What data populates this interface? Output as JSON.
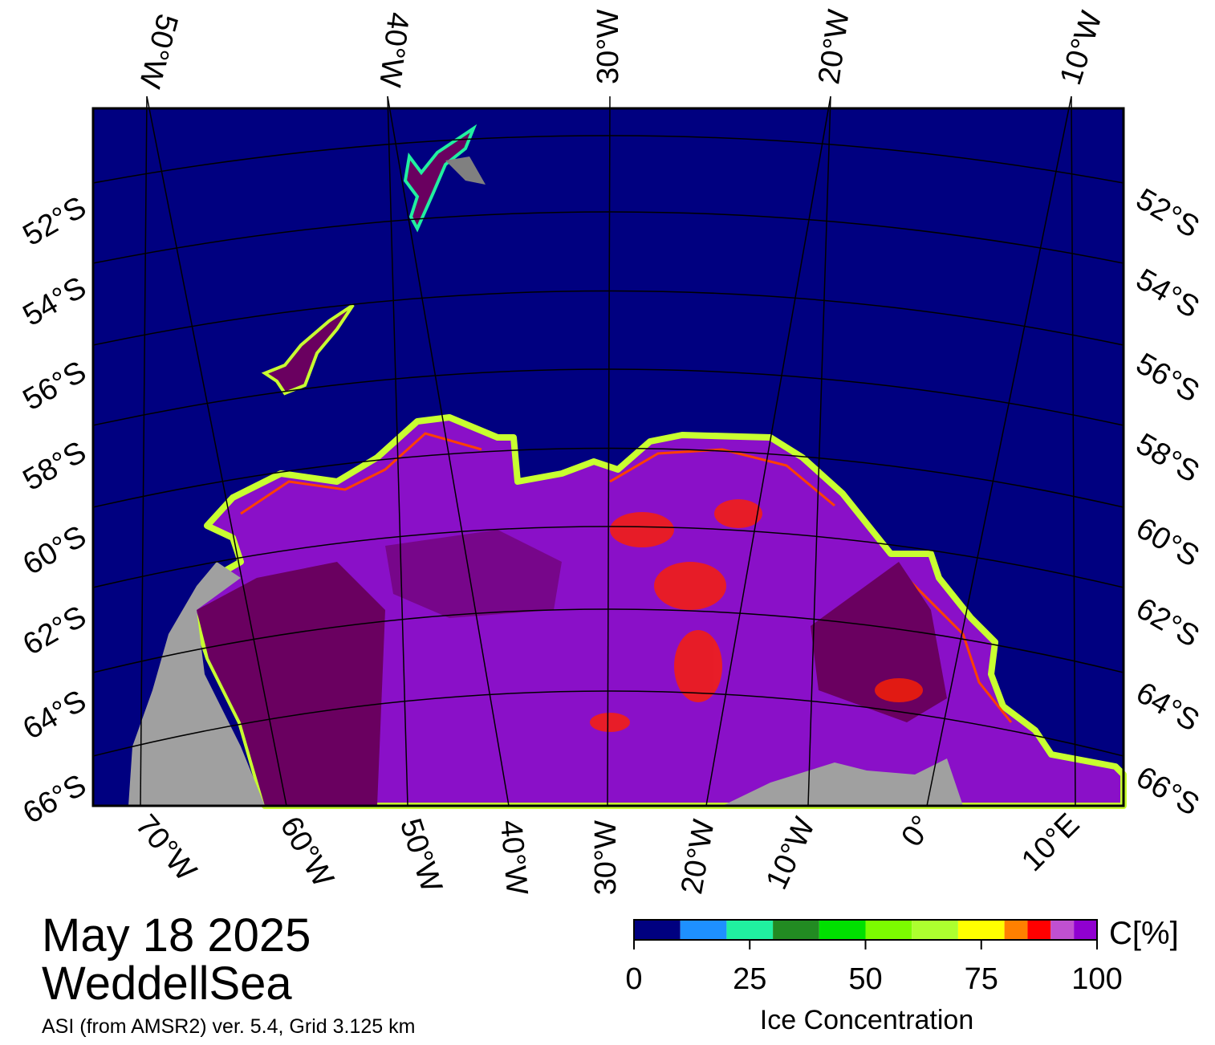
{
  "map": {
    "top_lon_labels": [
      "50°W",
      "40°W",
      "30°W",
      "20°W",
      "10°W"
    ],
    "bottom_lon_labels": [
      "70°W",
      "60°W",
      "50°W",
      "40°W",
      "30°W",
      "20°W",
      "10°W",
      "0°",
      "10°E"
    ],
    "left_lat_labels": [
      "52°S",
      "54°S",
      "56°S",
      "58°S",
      "60°S",
      "62°S",
      "64°S",
      "66°S"
    ],
    "right_lat_labels": [
      "52°S",
      "54°S",
      "56°S",
      "58°S",
      "60°S",
      "62°S",
      "64°S",
      "66°S"
    ]
  },
  "date": "May 18 2025",
  "region": "WeddellSea",
  "subtitle": "ASI (from AMSR2) ver. 5.4,  Grid 3.125 km",
  "colorbar": {
    "title": "Ice Concentration",
    "unit": "C[%]",
    "ticks": [
      0,
      25,
      50,
      75,
      100
    ],
    "bins": [
      0,
      10,
      20,
      30,
      40,
      50,
      60,
      70,
      80,
      85,
      90,
      95,
      100
    ],
    "colors": [
      "#000080",
      "#1e90ff",
      "#20f0a0",
      "#228b22",
      "#00e000",
      "#7cfc00",
      "#adff2f",
      "#ffff00",
      "#ff8000",
      "#ff0000",
      "#c050d0",
      "#9000d0"
    ]
  }
}
